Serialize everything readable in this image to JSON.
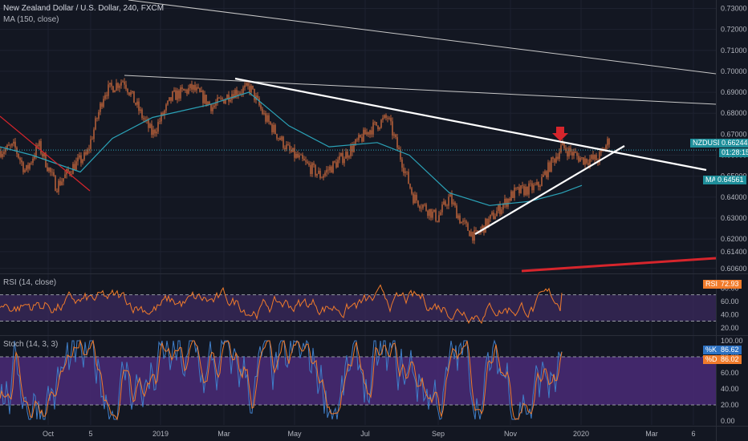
{
  "header": {
    "title": "New Zealand Dollar / U.S. Dollar, 240, FXCM",
    "ma_label": "MA (150, close)"
  },
  "price_panel": {
    "y_ticks": [
      "0.73000",
      "0.72000",
      "0.71000",
      "0.70000",
      "0.69000",
      "0.68000",
      "0.67000",
      "0.66000",
      "0.65000",
      "0.64000",
      "0.63000",
      "0.62000",
      "0.61400",
      "0.60600"
    ],
    "symbol_tag": "NZDUSD",
    "price_tag": "0.66244",
    "countdown_tag": "01:28:15",
    "ma_tag_name": "MA",
    "ma_tag_value": "0.64561"
  },
  "rsi_panel": {
    "label": "RSI (14, close)",
    "y_ticks": [
      "80.00",
      "60.00",
      "40.00",
      "20.00"
    ],
    "tag_name": "RSI",
    "tag_value": "72.93"
  },
  "stoch_panel": {
    "label": "Stoch (14, 3, 3)",
    "y_ticks": [
      "100.00",
      "80.00",
      "60.00",
      "40.00",
      "20.00",
      "0.00"
    ],
    "k_name": "%K",
    "k_value": "86.62",
    "d_name": "%D",
    "d_value": "86.02"
  },
  "x_axis": [
    "Oct",
    "5",
    "2019",
    "Mar",
    "May",
    "Jul",
    "Sep",
    "Nov",
    "2020",
    "Mar",
    "6"
  ],
  "colors": {
    "background": "#131722",
    "candle": "#e87640",
    "ma_line": "#2ba3b8",
    "trendline": "#ffffff",
    "red_line": "#d6252c",
    "rsi_line": "#f07b2b",
    "rsi_band": "#3b2a5e",
    "stoch_k": "#3f7ec8",
    "stoch_d": "#f07b2b",
    "stoch_band": "#4a2a77",
    "tag_teal": "#1f8f9b",
    "tag_orange": "#f07b2b",
    "tag_blue": "#2d71c2"
  },
  "chart_data": [
    {
      "type": "line",
      "title": "New Zealand Dollar / U.S. Dollar, 240, FXCM",
      "x": [
        "Oct",
        "5",
        "2019",
        "Mar",
        "May",
        "Jul",
        "Sep",
        "Nov",
        "2020"
      ],
      "series": [
        {
          "name": "NZDUSD",
          "values": [
            0.66,
            0.645,
            0.694,
            0.688,
            0.655,
            0.678,
            0.625,
            0.64,
            0.665
          ]
        },
        {
          "name": "MA (150, close)",
          "values": [
            0.664,
            0.655,
            0.676,
            0.689,
            0.67,
            0.665,
            0.642,
            0.63,
            0.6456
          ]
        }
      ],
      "ylim": [
        0.604,
        0.734
      ],
      "last_price": 0.66244
    },
    {
      "type": "line",
      "title": "RSI (14, close)",
      "series": [
        {
          "name": "RSI",
          "values": [
            72.93
          ]
        }
      ],
      "ylim": [
        10,
        100
      ],
      "levels": [
        70,
        30
      ]
    },
    {
      "type": "line",
      "title": "Stoch (14, 3, 3)",
      "series": [
        {
          "name": "%K",
          "values": [
            86.62
          ]
        },
        {
          "name": "%D",
          "values": [
            86.02
          ]
        }
      ],
      "ylim": [
        -5,
        105
      ],
      "levels": [
        80,
        20
      ]
    }
  ]
}
